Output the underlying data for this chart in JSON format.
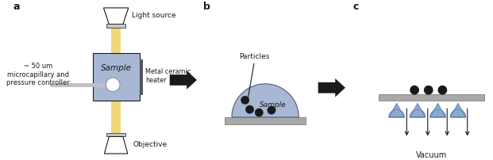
{
  "bg_color": "#ffffff",
  "label_a": "a",
  "label_b": "b",
  "label_c": "c",
  "text_light_source": "Light source",
  "text_objective": "Objective",
  "text_sample_a": "Sample",
  "text_microcap": "~ 50 um\nmicrocapillary and\npressure controller",
  "text_metal_ceramic": "Metal ceramic\nheater",
  "text_particles": "Particles",
  "text_sample_b": "Sample",
  "text_vacuum": "Vacuum",
  "blue_color": "#a8b8d4",
  "yellow_color": "#f0d878",
  "gray_color": "#a8a8a8",
  "gray_light": "#c8c8c8",
  "black_color": "#1a1a1a",
  "drop_color": "#8aabce",
  "drop_edge": "#6080aa"
}
